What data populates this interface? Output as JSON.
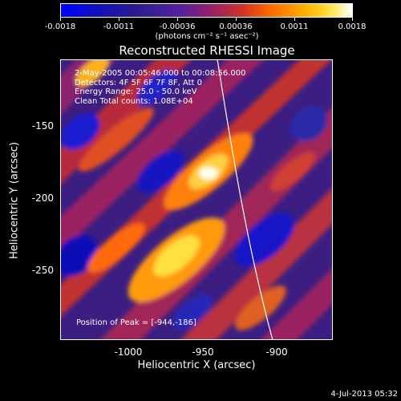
{
  "colorbar": {
    "ticks": [
      "-0.0018",
      "-0.0011",
      "-0.00036",
      "0.00036",
      "0.0011",
      "0.0018"
    ],
    "units": "(photons cm⁻² s⁻¹ asec⁻²)"
  },
  "title": "Reconstructed RHESSI Image",
  "info": {
    "line1": "2-May-2005 00:05:46.000 to 00:08:56.000",
    "line2": "Detectors: 4F 5F 6F 7F 8F, Att 0",
    "line3": "Energy Range: 25.0 - 50.0 keV",
    "line4": "Clean   Total counts: 1.08E+04"
  },
  "peak_text": "Position of Peak = [-944,-186]",
  "axes": {
    "xlabel": "Heliocentric X (arcsec)",
    "ylabel": "Heliocentric Y (arcsec)",
    "xticks": [
      "-1000",
      "-950",
      "-900"
    ],
    "yticks": [
      "-150",
      "-200",
      "-250"
    ]
  },
  "timestamp": "4-Jul-2013 05:32"
}
